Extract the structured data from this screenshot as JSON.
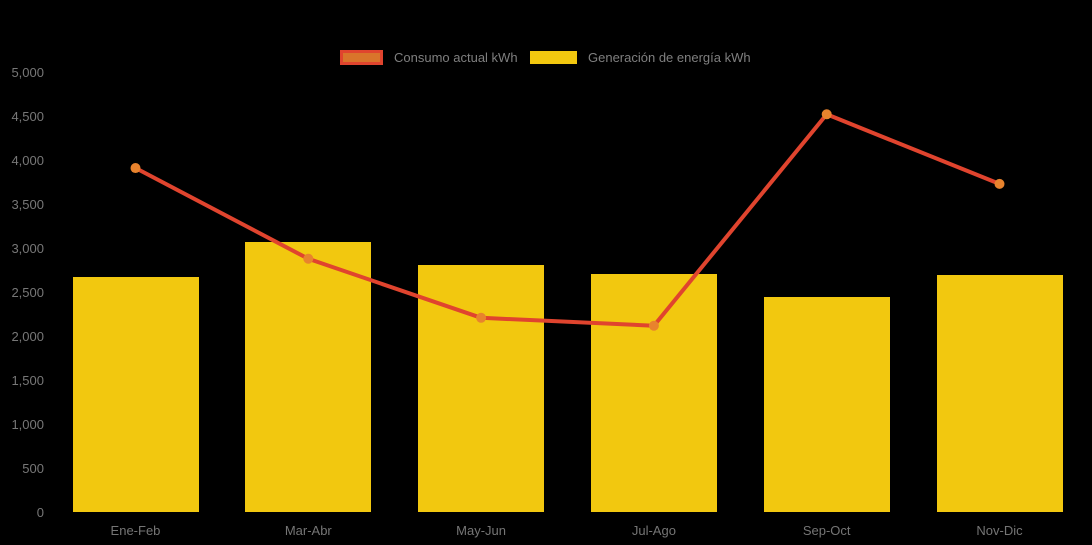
{
  "chart_data": {
    "type": "combo-bar-line",
    "title": "",
    "categories": [
      "Ene-Feb",
      "Mar-Abr",
      "May-Jun",
      "Jul-Ago",
      "Sep-Oct",
      "Nov-Dic"
    ],
    "series": [
      {
        "name": "Consumo actual kWh",
        "type": "line",
        "values": [
          3910,
          2880,
          2210,
          2120,
          4520,
          3730
        ],
        "color": "#e0442e",
        "marker_color": "#e8832d"
      },
      {
        "name": "Generación de energía kWh",
        "type": "bar",
        "values": [
          2670,
          3070,
          2810,
          2710,
          2450,
          2700
        ],
        "color": "#f2c80f"
      }
    ],
    "xlabel": "",
    "ylabel": "",
    "ylim": [
      0,
      5000
    ],
    "y_ticks": [
      0,
      500,
      1000,
      1500,
      2000,
      2500,
      3000,
      3500,
      4000,
      4500,
      5000
    ],
    "y_tick_labels": [
      "0",
      "500",
      "1,000",
      "1,500",
      "2,000",
      "2,500",
      "3,000",
      "3,500",
      "4,000",
      "4,500",
      "5,000"
    ],
    "grid": false,
    "legend_position": "top-center",
    "colors": {
      "background": "#000000",
      "axis_text": "#777777",
      "legend_text": "#7f7f7f",
      "bar": "#f2c80f",
      "line": "#e0442e",
      "marker": "#e8832d",
      "legend_line_swatch_fill": "#d9742b",
      "legend_line_swatch_border": "#e0442e"
    }
  }
}
